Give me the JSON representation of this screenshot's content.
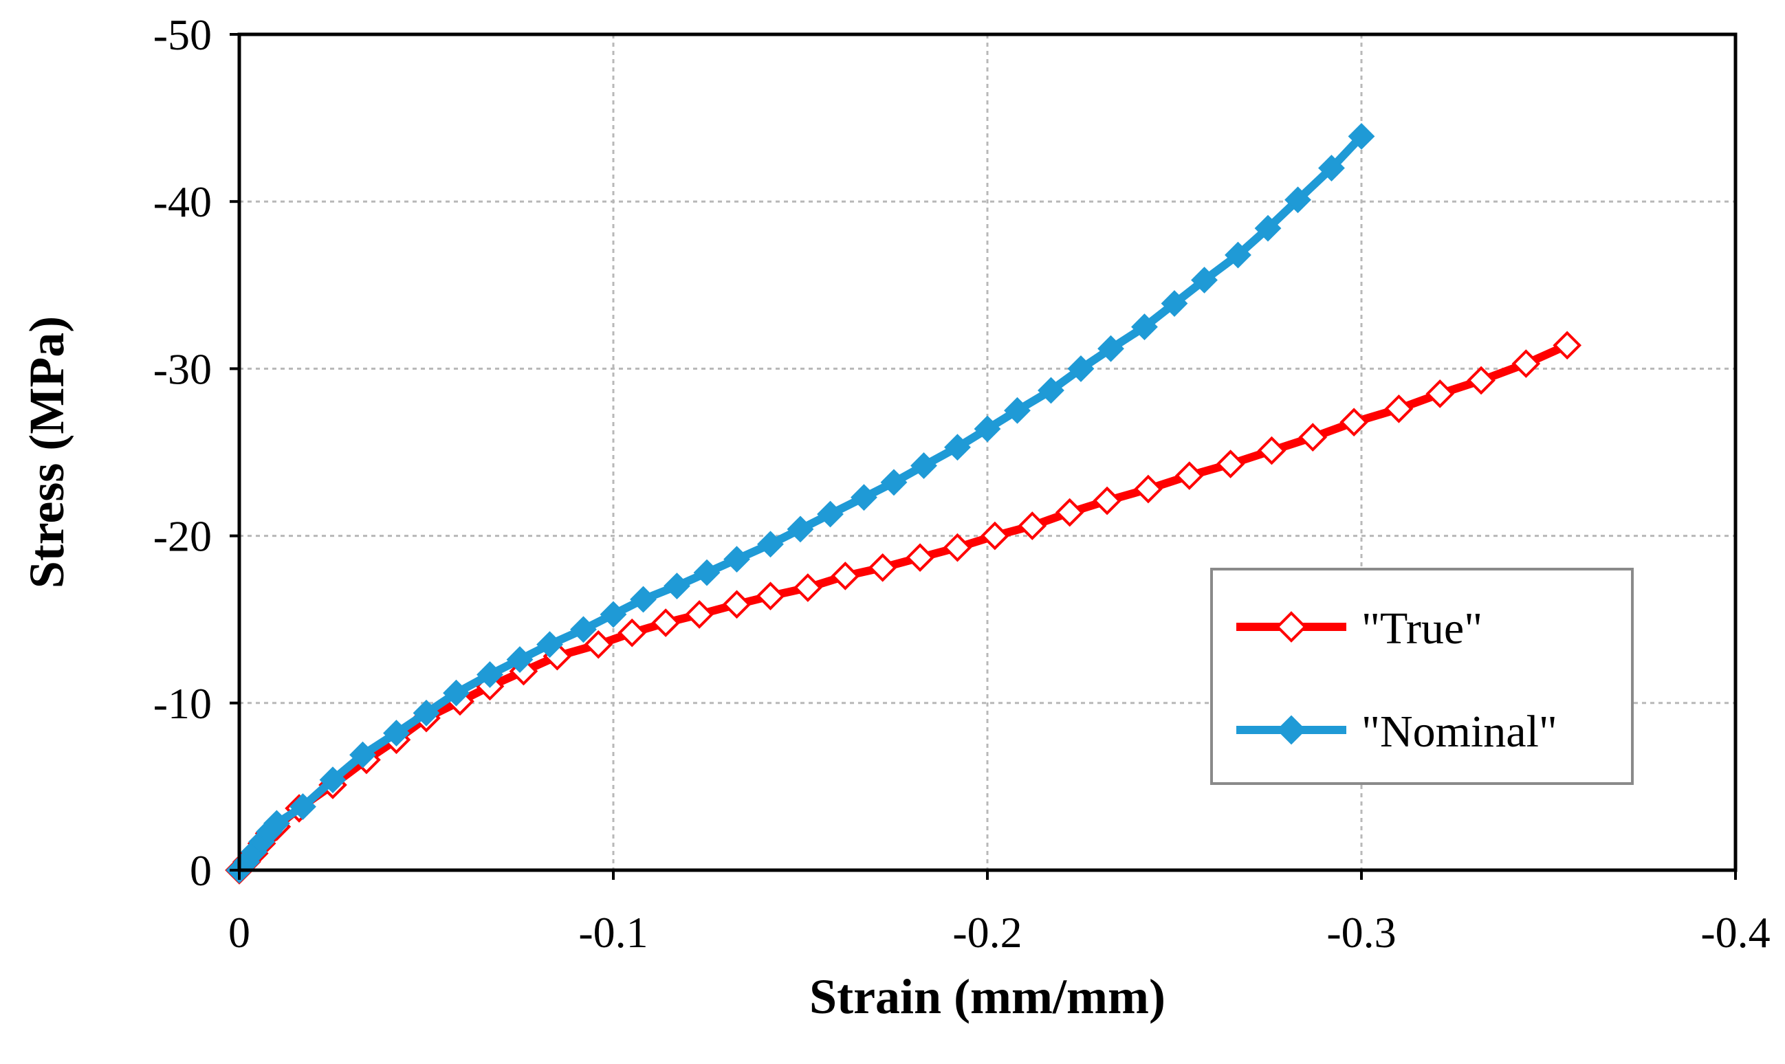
{
  "chart_data": {
    "type": "line",
    "title": "",
    "xlabel": "Strain (mm/mm)",
    "ylabel": "Stress (MPa)",
    "xlim": [
      0,
      -0.4
    ],
    "ylim": [
      0,
      -50
    ],
    "x_ticks": [
      0,
      -0.1,
      -0.2,
      -0.3,
      -0.4
    ],
    "x_tick_labels": [
      "0",
      "-0.1",
      "-0.2",
      "-0.3",
      "-0.4"
    ],
    "y_ticks": [
      0,
      -10,
      -20,
      -30,
      -40,
      -50
    ],
    "y_tick_labels": [
      "0",
      "-10",
      "-20",
      "-30",
      "-40",
      "-50"
    ],
    "grid": true,
    "legend_position": "center-right",
    "series": [
      {
        "name": "\"True\"",
        "color": "#ff0000",
        "marker": "open-diamond",
        "x": [
          0,
          -0.002,
          -0.004,
          -0.006,
          -0.008,
          -0.01,
          -0.016,
          -0.025,
          -0.034,
          -0.042,
          -0.05,
          -0.059,
          -0.067,
          -0.076,
          -0.085,
          -0.096,
          -0.105,
          -0.114,
          -0.123,
          -0.133,
          -0.142,
          -0.152,
          -0.162,
          -0.172,
          -0.182,
          -0.192,
          -0.202,
          -0.212,
          -0.222,
          -0.232,
          -0.243,
          -0.254,
          -0.265,
          -0.276,
          -0.287,
          -0.298,
          -0.31,
          -0.321,
          -0.332,
          -0.344,
          -0.355
        ],
        "y": [
          0,
          -0.5,
          -1,
          -1.6,
          -2.2,
          -2.6,
          -3.7,
          -5.1,
          -6.6,
          -7.8,
          -9.1,
          -10.1,
          -11,
          -11.9,
          -12.8,
          -13.5,
          -14.2,
          -14.8,
          -15.3,
          -15.9,
          -16.4,
          -16.9,
          -17.6,
          -18.1,
          -18.7,
          -19.3,
          -20,
          -20.6,
          -21.4,
          -22.1,
          -22.8,
          -23.6,
          -24.3,
          -25.1,
          -25.9,
          -26.8,
          -27.6,
          -28.5,
          -29.3,
          -30.3,
          -31.4
        ]
      },
      {
        "name": "\"Nominal\"",
        "color": "#1f9ad6",
        "marker": "filled-diamond",
        "x": [
          0,
          -0.002,
          -0.004,
          -0.006,
          -0.008,
          -0.01,
          -0.017,
          -0.025,
          -0.033,
          -0.042,
          -0.05,
          -0.058,
          -0.067,
          -0.075,
          -0.083,
          -0.092,
          -0.1,
          -0.108,
          -0.117,
          -0.125,
          -0.133,
          -0.142,
          -0.15,
          -0.158,
          -0.167,
          -0.175,
          -0.183,
          -0.192,
          -0.2,
          -0.208,
          -0.217,
          -0.225,
          -0.233,
          -0.242,
          -0.25,
          -0.258,
          -0.267,
          -0.275,
          -0.283,
          -0.292,
          -0.3
        ],
        "y": [
          0,
          -0.5,
          -1.1,
          -1.7,
          -2.3,
          -2.8,
          -3.8,
          -5.4,
          -6.9,
          -8.2,
          -9.4,
          -10.6,
          -11.7,
          -12.6,
          -13.5,
          -14.4,
          -15.3,
          -16.2,
          -17,
          -17.8,
          -18.6,
          -19.5,
          -20.4,
          -21.3,
          -22.3,
          -23.2,
          -24.2,
          -25.3,
          -26.4,
          -27.5,
          -28.7,
          -30,
          -31.2,
          -32.5,
          -33.9,
          -35.3,
          -36.8,
          -38.4,
          -40.1,
          -42,
          -43.9
        ]
      }
    ]
  }
}
